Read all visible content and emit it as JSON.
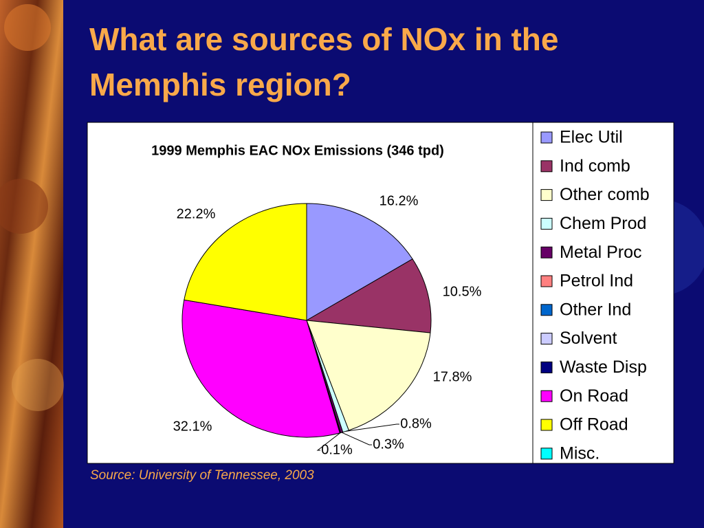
{
  "slide_title": "What are sources of NOx in the Memphis region?",
  "source": "Source:  University of Tennessee, 2003",
  "chart_data": {
    "type": "pie",
    "title": "1999 Memphis EAC NOx Emissions (346 tpd)",
    "categories": [
      "Elec Util",
      "Ind comb",
      "Other comb",
      "Chem Prod",
      "Metal Proc",
      "Petrol Ind",
      "Other Ind",
      "Solvent",
      "Waste Disp",
      "On Road",
      "Off Road",
      "Misc."
    ],
    "values": [
      16.2,
      10.5,
      17.8,
      0.8,
      0.3,
      0,
      0,
      0,
      0.1,
      32.1,
      22.2,
      0
    ],
    "value_labels": [
      "16.2%",
      "10.5%",
      "17.8%",
      "0.8%",
      "0.3%",
      null,
      null,
      null,
      "0.1%",
      "32.1%",
      "22.2%",
      null
    ],
    "colors": [
      "#9999ff",
      "#993366",
      "#ffffcc",
      "#ccffff",
      "#660066",
      "#ff8080",
      "#0066cc",
      "#ccccff",
      "#000080",
      "#ff00ff",
      "#ffff00",
      "#00ffff"
    ]
  }
}
